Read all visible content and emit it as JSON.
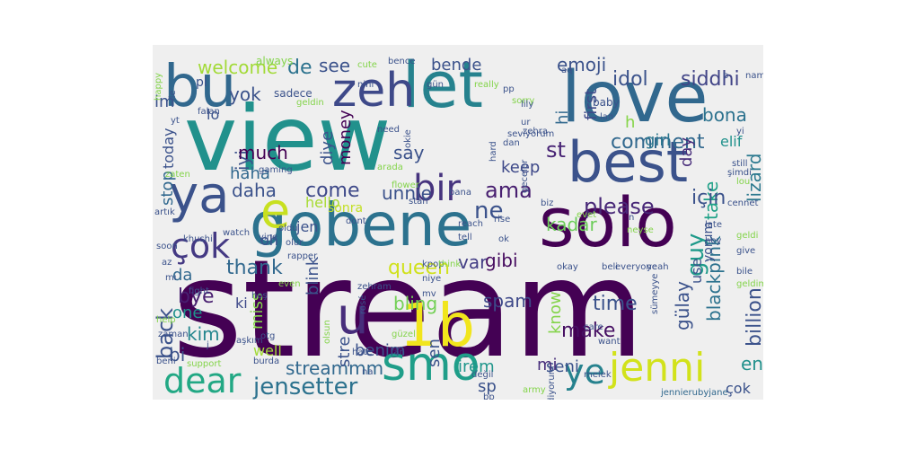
{
  "words": [
    {
      "text": "stream",
      "color": "#440154"
    },
    {
      "text": "view",
      "color": "#21918c"
    },
    {
      "text": "love",
      "color": "#31688e"
    },
    {
      "text": "gobene",
      "color": "#2c728e"
    },
    {
      "text": "best",
      "color": "#3b528b"
    },
    {
      "text": "solo",
      "color": "#440154"
    },
    {
      "text": "bu",
      "color": "#31688e"
    },
    {
      "text": "let",
      "color": "#26828e"
    },
    {
      "text": "zeh",
      "color": "#3e4989"
    },
    {
      "text": "ya",
      "color": "#3b528b"
    },
    {
      "text": "smo",
      "color": "#1f9e89"
    },
    {
      "text": "e",
      "color": "#c8e020"
    },
    {
      "text": "1b",
      "color": "#f1e51d"
    },
    {
      "text": "u",
      "color": "#472d7b"
    },
    {
      "text": "jenni",
      "color": "#d2e21b"
    },
    {
      "text": "dear",
      "color": "#22a884"
    },
    {
      "text": "ye",
      "color": "#26828e"
    },
    {
      "text": "çok",
      "color": "#443983"
    },
    {
      "text": "bir",
      "color": "#46337e"
    },
    {
      "text": "jensetter",
      "color": "#2c728e"
    },
    {
      "text": "idol",
      "color": "#3b528b"
    },
    {
      "text": "siddhi",
      "color": "#414487"
    },
    {
      "text": "emoji",
      "color": "#3b528b"
    },
    {
      "text": "comment",
      "color": "#31688e"
    },
    {
      "text": "please",
      "color": "#482878"
    },
    {
      "text": "queen",
      "color": "#d0e11c"
    },
    {
      "text": "welcome",
      "color": "#a2da37"
    },
    {
      "text": "de",
      "color": "#2c728e"
    },
    {
      "text": "see",
      "color": "#3b528b"
    },
    {
      "text": "st",
      "color": "#482475"
    },
    {
      "text": "ama",
      "color": "#481f70"
    },
    {
      "text": "come",
      "color": "#3e4989"
    },
    {
      "text": "thank",
      "color": "#31688e"
    },
    {
      "text": "back",
      "color": "#3b528b"
    },
    {
      "text": "bye",
      "color": "#481f70"
    },
    {
      "text": "kim",
      "color": "#24868e"
    },
    {
      "text": "make",
      "color": "#471063"
    },
    {
      "text": "time",
      "color": "#3b528b"
    },
    {
      "text": "bling",
      "color": "#73d056"
    },
    {
      "text": "spam",
      "color": "#3e4989"
    },
    {
      "text": "var",
      "color": "#433e85"
    },
    {
      "text": "gibi",
      "color": "#470d60"
    },
    {
      "text": "ne",
      "color": "#3b528b"
    },
    {
      "text": "kadar",
      "color": "#6ccd5a"
    },
    {
      "text": "keep",
      "color": "#3e4989"
    },
    {
      "text": "guy",
      "color": "#1f9a8a"
    },
    {
      "text": "take",
      "color": "#1fa187"
    },
    {
      "text": "lizard",
      "color": "#2a788e"
    },
    {
      "text": "için",
      "color": "#3b528b"
    },
    {
      "text": "elif",
      "color": "#21918c"
    },
    {
      "text": "bona",
      "color": "#2c728e"
    },
    {
      "text": "girl",
      "color": "#2a768e"
    },
    {
      "text": "day",
      "color": "#472c7a"
    },
    {
      "text": "first",
      "color": "#3e4989"
    },
    {
      "text": "hi",
      "color": "#31688e"
    },
    {
      "text": "h",
      "color": "#86d549"
    },
    {
      "text": "bende",
      "color": "#3b528b"
    },
    {
      "text": "yok",
      "color": "#3b528b"
    },
    {
      "text": "iyi",
      "color": "#3b528b"
    },
    {
      "text": "much",
      "color": "#440154"
    },
    {
      "text": "daha",
      "color": "#3b528b"
    },
    {
      "text": "haha",
      "color": "#31688e"
    },
    {
      "text": "stop",
      "color": "#31688e"
    },
    {
      "text": "today",
      "color": "#3b528b"
    },
    {
      "text": "say",
      "color": "#3b528b"
    },
    {
      "text": "unnie",
      "color": "#3b528b"
    },
    {
      "text": "money",
      "color": "#440154"
    },
    {
      "text": "diye",
      "color": "#3b528b"
    },
    {
      "text": "hello",
      "color": "#a8db34"
    },
    {
      "text": "sonra",
      "color": "#c2df23"
    },
    {
      "text": "jen",
      "color": "#3b528b"
    },
    {
      "text": "oh",
      "color": "#3b528b"
    },
    {
      "text": "da",
      "color": "#31688e"
    },
    {
      "text": "one",
      "color": "#21918c"
    },
    {
      "text": "miss",
      "color": "#84d44b"
    },
    {
      "text": "ki",
      "color": "#3e4989"
    },
    {
      "text": "blink",
      "color": "#3b528b"
    },
    {
      "text": "bi",
      "color": "#3b528b"
    },
    {
      "text": "well",
      "color": "#a2da37"
    },
    {
      "text": "streammm",
      "color": "#31688e"
    },
    {
      "text": "benim",
      "color": "#3b528b"
    },
    {
      "text": "irem",
      "color": "#1f968b"
    },
    {
      "text": "sen",
      "color": "#3b528b"
    },
    {
      "text": "sp",
      "color": "#3b528b"
    },
    {
      "text": "seni",
      "color": "#3b528b"
    },
    {
      "text": "mi",
      "color": "#472d7b"
    },
    {
      "text": "en",
      "color": "#21918c"
    },
    {
      "text": "çok",
      "color": "#3b528b"
    },
    {
      "text": "billion",
      "color": "#3b528b"
    },
    {
      "text": "blackpink",
      "color": "#2c728e"
    },
    {
      "text": "gülay",
      "color": "#3b528b"
    },
    {
      "text": "know",
      "color": "#84d44b"
    },
    {
      "text": "use",
      "color": "#3b528b"
    },
    {
      "text": "yorum",
      "color": "#3b528b"
    },
    {
      "text": "jennierubyjane",
      "color": "#31688e"
    },
    {
      "text": "stre",
      "color": "#3b528b"
    },
    {
      "text": "im",
      "color": "#3b528b"
    },
    {
      "text": "lo",
      "color": "#3b528b"
    },
    {
      "text": "pl",
      "color": "#3b528b"
    },
    {
      "text": "sadece",
      "color": "#3b528b"
    },
    {
      "text": "always",
      "color": "#84d44b"
    },
    {
      "text": "cute",
      "color": "#84d44b"
    },
    {
      "text": "bence",
      "color": "#3b528b"
    },
    {
      "text": "nini",
      "color": "#3b528b"
    },
    {
      "text": "geldin",
      "color": "#84d44b"
    },
    {
      "text": "gün",
      "color": "#3b528b"
    },
    {
      "text": "really",
      "color": "#84d44b"
    },
    {
      "text": "pp",
      "color": "#3b528b"
    },
    {
      "text": "sorry",
      "color": "#84d44b"
    },
    {
      "text": "lily",
      "color": "#3b528b"
    },
    {
      "text": "ur",
      "color": "#3b528b"
    },
    {
      "text": "zehra",
      "color": "#3b528b"
    },
    {
      "text": "aq",
      "color": "#3b528b"
    },
    {
      "text": "baby",
      "color": "#3b528b"
    },
    {
      "text": "lan",
      "color": "#3b528b"
    },
    {
      "text": "name",
      "color": "#3b528b"
    },
    {
      "text": "b",
      "color": "#3b528b"
    },
    {
      "text": "happy",
      "color": "#84d44b"
    },
    {
      "text": "ile",
      "color": "#3b528b"
    },
    {
      "text": "yt",
      "color": "#3b528b"
    },
    {
      "text": "falan",
      "color": "#3b528b"
    },
    {
      "text": "need",
      "color": "#3b528b"
    },
    {
      "text": "okie",
      "color": "#3b528b"
    },
    {
      "text": "hard",
      "color": "#3b528b"
    },
    {
      "text": "seviyorum",
      "color": "#3b528b"
    },
    {
      "text": "dan",
      "color": "#3b528b"
    },
    {
      "text": "yi",
      "color": "#3b528b"
    },
    {
      "text": "still",
      "color": "#3b528b"
    },
    {
      "text": "şimdi",
      "color": "#3b528b"
    },
    {
      "text": "lou",
      "color": "#84d44b"
    },
    {
      "text": "zaten",
      "color": "#84d44b"
    },
    {
      "text": "gaming",
      "color": "#3b528b"
    },
    {
      "text": "arada",
      "color": "#84d44b"
    },
    {
      "text": "flower",
      "color": "#84d44b"
    },
    {
      "text": "stan",
      "color": "#3b528b"
    },
    {
      "text": "bana",
      "color": "#3b528b"
    },
    {
      "text": "biz",
      "color": "#3b528b"
    },
    {
      "text": "evet",
      "color": "#84d44b"
    },
    {
      "text": "geceler",
      "color": "#3b528b"
    },
    {
      "text": "cennet",
      "color": "#3b528b"
    },
    {
      "text": "artık",
      "color": "#3b528b"
    },
    {
      "text": "watch",
      "color": "#3b528b"
    },
    {
      "text": "yine",
      "color": "#3b528b"
    },
    {
      "text": "reach",
      "color": "#3b528b"
    },
    {
      "text": "rise",
      "color": "#3b528b"
    },
    {
      "text": "ok",
      "color": "#3b528b"
    },
    {
      "text": "late",
      "color": "#3b528b"
    },
    {
      "text": "hey",
      "color": "#3b528b"
    },
    {
      "text": "geldi",
      "color": "#84d44b"
    },
    {
      "text": "give",
      "color": "#3b528b"
    },
    {
      "text": "soon",
      "color": "#3b528b"
    },
    {
      "text": "az",
      "color": "#3b528b"
    },
    {
      "text": "khushi",
      "color": "#3b528b"
    },
    {
      "text": "olur",
      "color": "#3b528b"
    },
    {
      "text": "oldu",
      "color": "#3b528b"
    },
    {
      "text": "rapper",
      "color": "#3b528b"
    },
    {
      "text": "dont",
      "color": "#3b528b"
    },
    {
      "text": "tell",
      "color": "#3b528b"
    },
    {
      "text": "n",
      "color": "#3b528b"
    },
    {
      "text": "neyse",
      "color": "#84d44b"
    },
    {
      "text": "mı",
      "color": "#3b528b"
    },
    {
      "text": "kpop",
      "color": "#3b528b"
    },
    {
      "text": "think",
      "color": "#84d44b"
    },
    {
      "text": "okay",
      "color": "#3b528b"
    },
    {
      "text": "beli",
      "color": "#3b528b"
    },
    {
      "text": "everyone",
      "color": "#3b528b"
    },
    {
      "text": "yeah",
      "color": "#3b528b"
    },
    {
      "text": "bile",
      "color": "#3b528b"
    },
    {
      "text": "hoş",
      "color": "#3b528b"
    },
    {
      "text": "zehram",
      "color": "#3b528b"
    },
    {
      "text": "niye",
      "color": "#3b528b"
    },
    {
      "text": "geldim",
      "color": "#84d44b"
    },
    {
      "text": "fight",
      "color": "#3b528b"
    },
    {
      "text": "even",
      "color": "#84d44b"
    },
    {
      "text": "mv",
      "color": "#3b528b"
    },
    {
      "text": "sümeyye",
      "color": "#3b528b"
    },
    {
      "text": "rosé",
      "color": "#3b528b"
    },
    {
      "text": "help",
      "color": "#84d44b"
    },
    {
      "text": "zaman",
      "color": "#3b528b"
    },
    {
      "text": "olsun",
      "color": "#84d44b"
    },
    {
      "text": "otg",
      "color": "#3b528b"
    },
    {
      "text": "güzel",
      "color": "#84d44b"
    },
    {
      "text": "care",
      "color": "#3b528b"
    },
    {
      "text": "want",
      "color": "#3b528b"
    },
    {
      "text": "j",
      "color": "#3b528b"
    },
    {
      "text": "aşkım",
      "color": "#3b528b"
    },
    {
      "text": "hate",
      "color": "#3b528b"
    },
    {
      "text": "fan",
      "color": "#3b528b"
    },
    {
      "text": "beni",
      "color": "#3b528b"
    },
    {
      "text": "support",
      "color": "#84d44b"
    },
    {
      "text": "burda",
      "color": "#3b528b"
    },
    {
      "text": "na",
      "color": "#3b528b"
    },
    {
      "text": "değil",
      "color": "#3b528b"
    },
    {
      "text": "melek",
      "color": "#3b528b"
    },
    {
      "text": "bp",
      "color": "#3b528b"
    },
    {
      "text": "army",
      "color": "#84d44b"
    },
    {
      "text": "gidiyorum",
      "color": "#3b528b"
    }
  ]
}
